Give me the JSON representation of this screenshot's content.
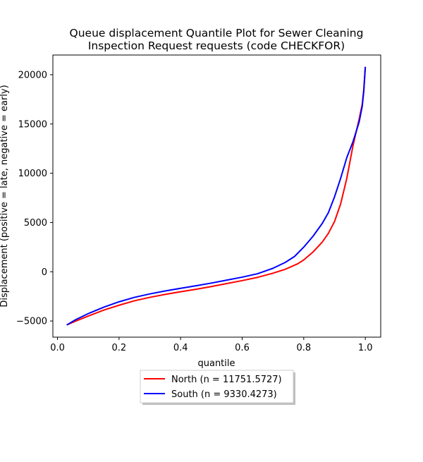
{
  "chart_data": {
    "type": "line",
    "title_lines": [
      "Queue displacement Quantile Plot for Sewer Cleaning",
      "Inspection Request  requests (code CHECKFOR)"
    ],
    "xlabel": "quantile",
    "ylabel": "Displacement (positive = late, negative = early)",
    "xlim": [
      -0.015,
      1.05
    ],
    "ylim": [
      -6640,
      22000
    ],
    "xticks": [
      0.0,
      0.2,
      0.4,
      0.6,
      0.8,
      1.0
    ],
    "xtick_labels": [
      "0.0",
      "0.2",
      "0.4",
      "0.6",
      "0.8",
      "1.0"
    ],
    "yticks": [
      -5000,
      0,
      5000,
      10000,
      15000,
      20000
    ],
    "ytick_labels": [
      "−5000",
      "0",
      "5000",
      "10000",
      "15000",
      "20000"
    ],
    "grid": false,
    "legend_position": "below plot, centered, with shadow",
    "series": [
      {
        "name": "North (n = 11751.5727)",
        "color": "#ff0000",
        "points": [
          [
            0.03,
            -5400
          ],
          [
            0.06,
            -5000
          ],
          [
            0.1,
            -4500
          ],
          [
            0.15,
            -3900
          ],
          [
            0.2,
            -3400
          ],
          [
            0.25,
            -2950
          ],
          [
            0.3,
            -2600
          ],
          [
            0.35,
            -2300
          ],
          [
            0.4,
            -2030
          ],
          [
            0.45,
            -1780
          ],
          [
            0.5,
            -1500
          ],
          [
            0.55,
            -1200
          ],
          [
            0.6,
            -900
          ],
          [
            0.65,
            -570
          ],
          [
            0.7,
            -150
          ],
          [
            0.74,
            250
          ],
          [
            0.78,
            800
          ],
          [
            0.8,
            1200
          ],
          [
            0.83,
            2000
          ],
          [
            0.86,
            3000
          ],
          [
            0.88,
            3900
          ],
          [
            0.9,
            5100
          ],
          [
            0.92,
            6900
          ],
          [
            0.94,
            9500
          ],
          [
            0.96,
            12800
          ],
          [
            0.98,
            15500
          ],
          [
            0.99,
            17000
          ],
          [
            0.995,
            18500
          ],
          [
            1.0,
            20800
          ]
        ]
      },
      {
        "name": "South (n = 9330.4273)",
        "color": "#0000ff",
        "points": [
          [
            0.03,
            -5400
          ],
          [
            0.06,
            -4850
          ],
          [
            0.1,
            -4250
          ],
          [
            0.15,
            -3600
          ],
          [
            0.2,
            -3050
          ],
          [
            0.25,
            -2600
          ],
          [
            0.3,
            -2250
          ],
          [
            0.35,
            -1950
          ],
          [
            0.4,
            -1680
          ],
          [
            0.45,
            -1420
          ],
          [
            0.5,
            -1150
          ],
          [
            0.55,
            -850
          ],
          [
            0.6,
            -550
          ],
          [
            0.65,
            -200
          ],
          [
            0.7,
            350
          ],
          [
            0.74,
            950
          ],
          [
            0.77,
            1550
          ],
          [
            0.8,
            2500
          ],
          [
            0.83,
            3600
          ],
          [
            0.86,
            4900
          ],
          [
            0.88,
            6000
          ],
          [
            0.9,
            7600
          ],
          [
            0.92,
            9500
          ],
          [
            0.94,
            11600
          ],
          [
            0.96,
            13200
          ],
          [
            0.98,
            15200
          ],
          [
            0.99,
            16800
          ],
          [
            0.995,
            18300
          ],
          [
            1.0,
            20800
          ]
        ]
      }
    ]
  }
}
